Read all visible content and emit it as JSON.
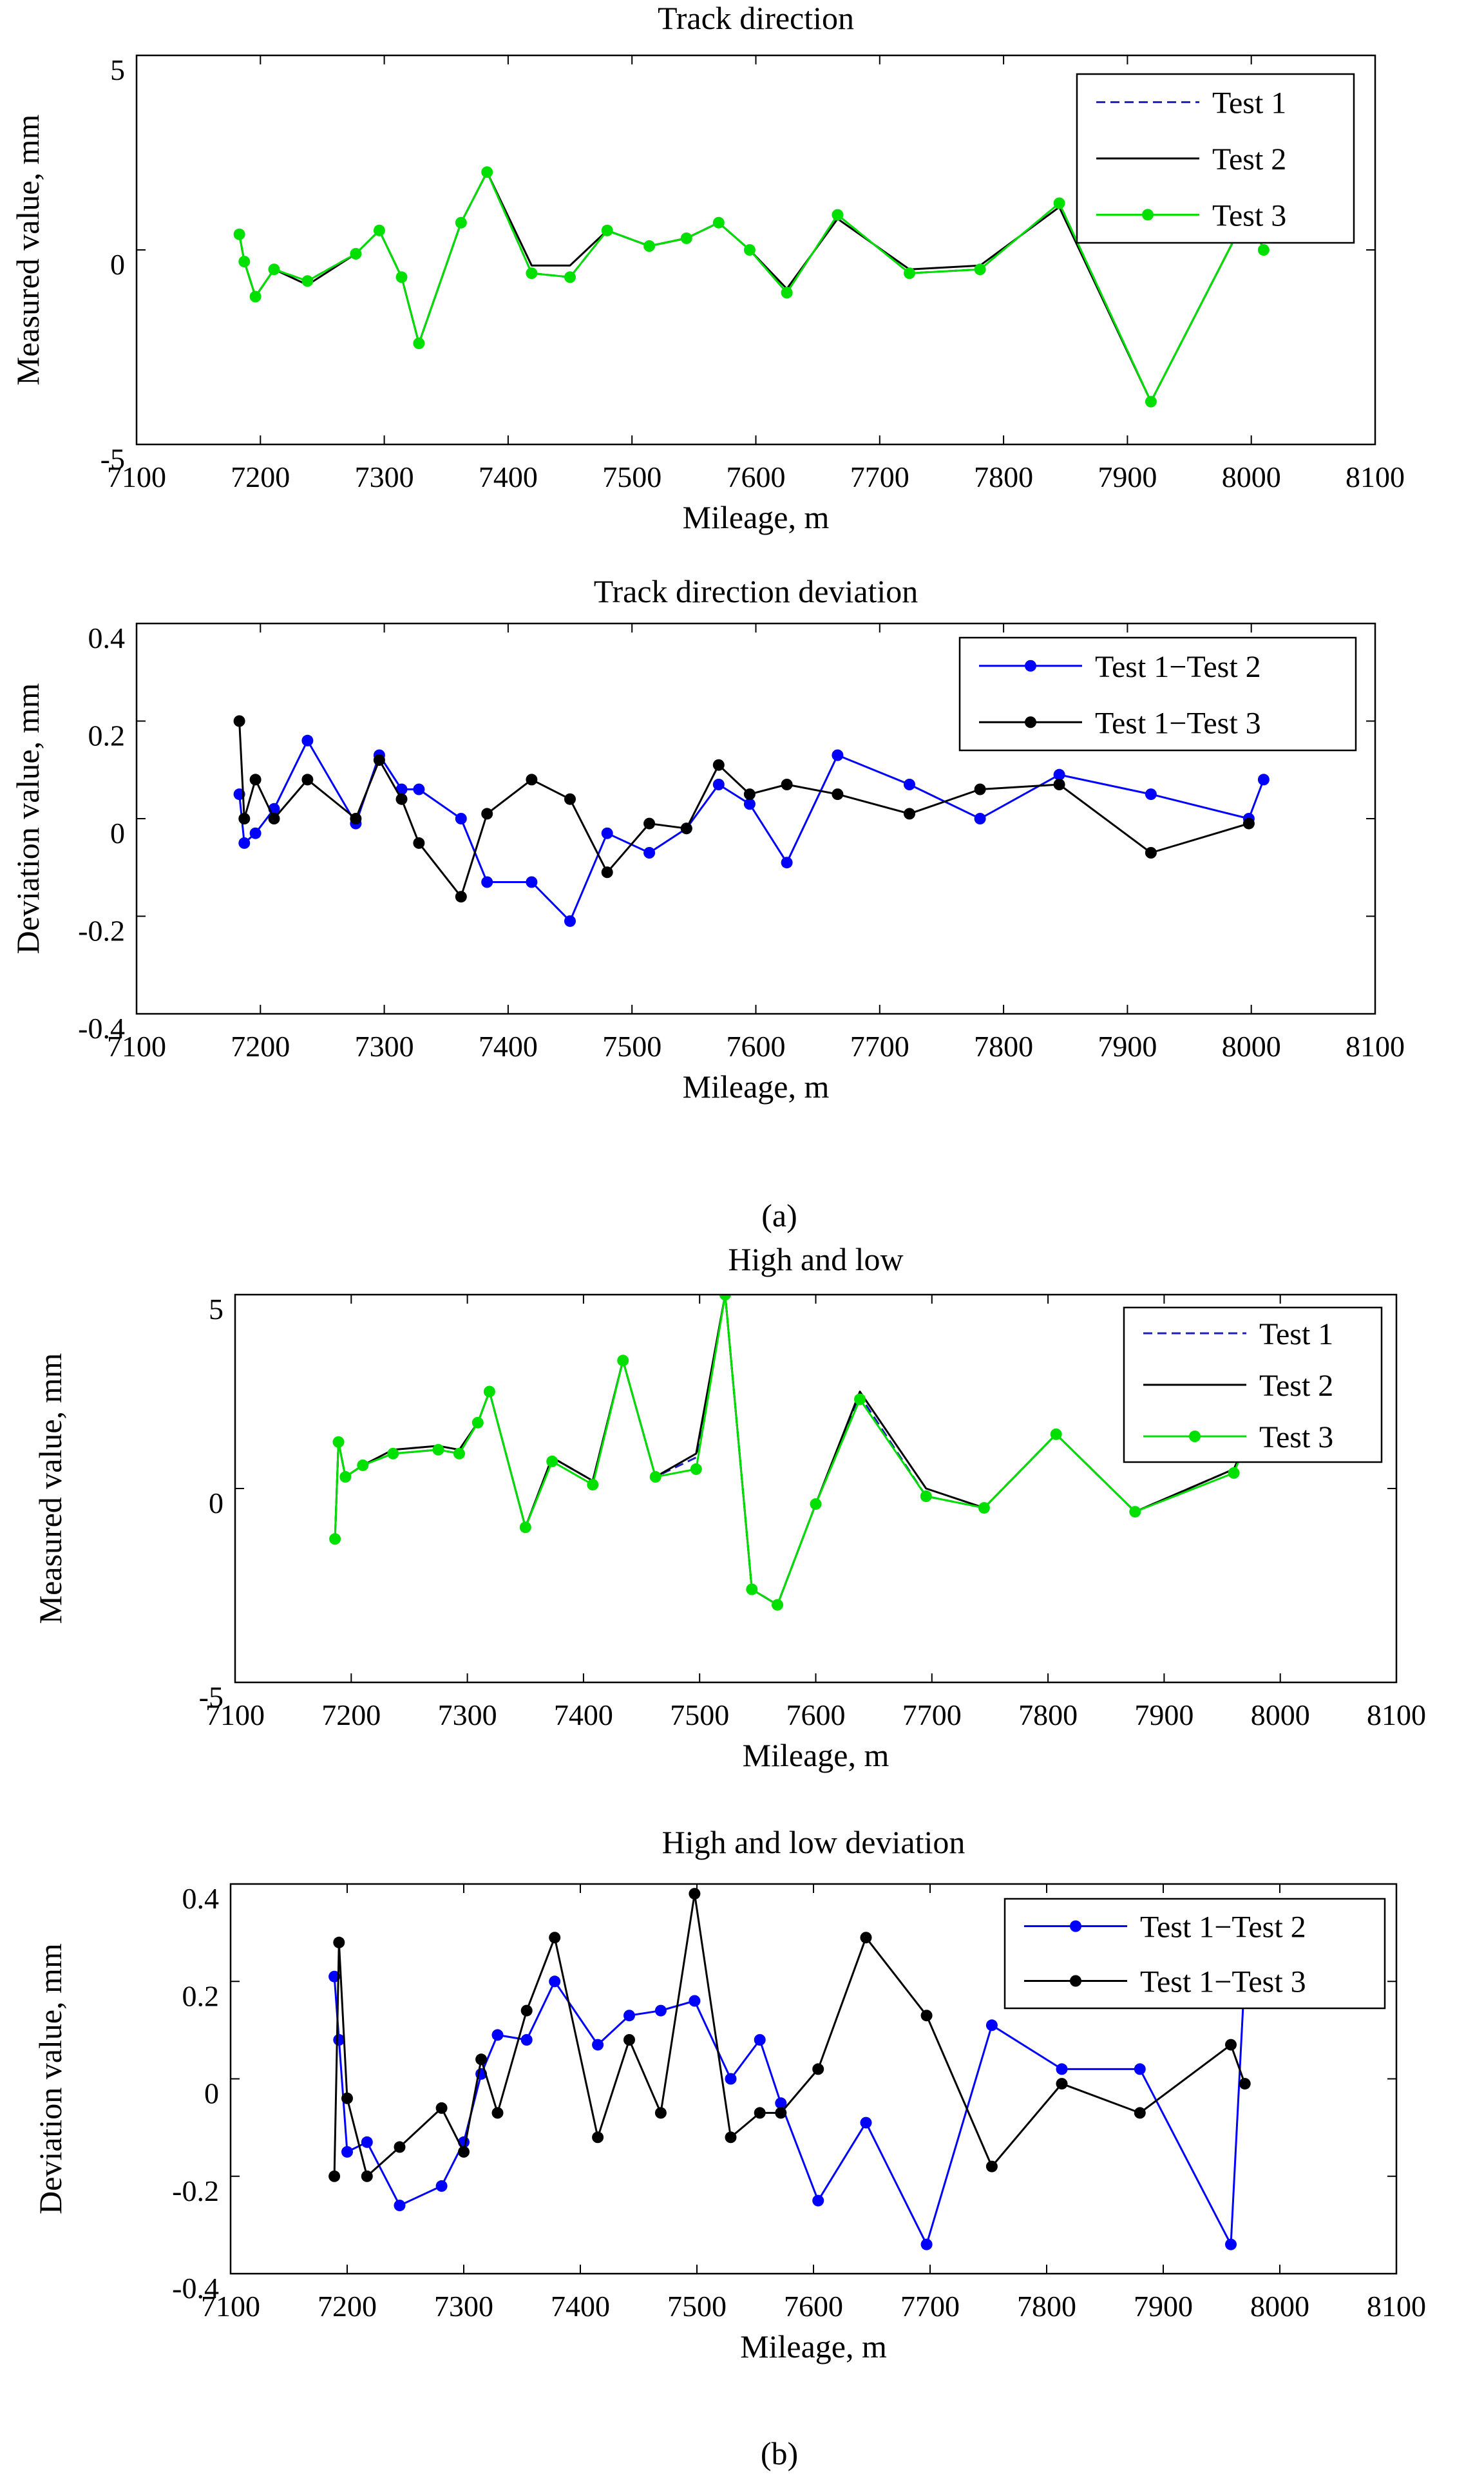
{
  "figure": {
    "captions": [
      "(a)",
      "(b)"
    ]
  },
  "colors": {
    "test1": "#1f1fbf",
    "test2": "#000000",
    "test3": "#00e000",
    "dev12": "#0000ff",
    "dev13": "#000000"
  },
  "chart_data": [
    {
      "id": "track-direction",
      "type": "line",
      "title": "Track direction",
      "xlabel": "Mileage, m",
      "ylabel": "Measured value, mm",
      "xlim": [
        7100,
        8100
      ],
      "ylim": [
        -5,
        5
      ],
      "xticks": [
        7100,
        7200,
        7300,
        7400,
        7500,
        7600,
        7700,
        7800,
        7900,
        8000,
        8100
      ],
      "yticks": [
        -5,
        0,
        5
      ],
      "legend_position": "top-right",
      "series": [
        {
          "name": "Test 1",
          "style": "dashed",
          "color": "#1f1fbf",
          "markers": false,
          "x": [
            7183,
            7187,
            7196,
            7211,
            7238,
            7277,
            7296,
            7314,
            7328,
            7362,
            7383,
            7419,
            7450,
            7480,
            7514,
            7544,
            7570,
            7595,
            7625,
            7666,
            7724,
            7781,
            7845,
            7919,
            7998,
            8010
          ],
          "y": [
            0.4,
            -0.3,
            -1.2,
            -0.5,
            -0.8,
            -0.1,
            0.5,
            -0.7,
            -2.4,
            0.7,
            2.0,
            -0.6,
            -0.7,
            0.5,
            0.1,
            0.3,
            0.7,
            0.0,
            -1.1,
            0.9,
            -0.6,
            -0.5,
            1.2,
            -3.9,
            1.0,
            0.0
          ]
        },
        {
          "name": "Test 2",
          "style": "solid",
          "color": "#000000",
          "markers": false,
          "x": [
            7183,
            7187,
            7196,
            7211,
            7238,
            7277,
            7296,
            7314,
            7328,
            7362,
            7383,
            7419,
            7450,
            7480,
            7514,
            7544,
            7570,
            7595,
            7625,
            7666,
            7724,
            7781,
            7845,
            7919,
            7998,
            8010
          ],
          "y": [
            0.4,
            -0.3,
            -1.2,
            -0.5,
            -0.9,
            -0.1,
            0.5,
            -0.7,
            -2.4,
            0.7,
            2.0,
            -0.4,
            -0.4,
            0.5,
            0.1,
            0.3,
            0.7,
            0.0,
            -1.0,
            0.8,
            -0.5,
            -0.4,
            1.1,
            -3.9,
            1.0,
            0.0
          ]
        },
        {
          "name": "Test 3",
          "style": "solid",
          "color": "#00e000",
          "markers": true,
          "x": [
            7183,
            7187,
            7196,
            7211,
            7238,
            7277,
            7296,
            7314,
            7328,
            7362,
            7383,
            7419,
            7450,
            7480,
            7514,
            7544,
            7570,
            7595,
            7625,
            7666,
            7724,
            7781,
            7845,
            7919,
            7998,
            8010
          ],
          "y": [
            0.4,
            -0.3,
            -1.2,
            -0.5,
            -0.8,
            -0.1,
            0.5,
            -0.7,
            -2.4,
            0.7,
            2.0,
            -0.6,
            -0.7,
            0.5,
            0.1,
            0.3,
            0.7,
            0.0,
            -1.1,
            0.9,
            -0.6,
            -0.5,
            1.2,
            -3.9,
            1.0,
            0.0
          ]
        }
      ]
    },
    {
      "id": "track-direction-deviation",
      "type": "line",
      "title": "Track direction deviation",
      "xlabel": "Mileage, m",
      "ylabel": "Deviation value, mm",
      "xlim": [
        7100,
        8100
      ],
      "ylim": [
        -0.4,
        0.4
      ],
      "xticks": [
        7100,
        7200,
        7300,
        7400,
        7500,
        7600,
        7700,
        7800,
        7900,
        8000,
        8100
      ],
      "yticks": [
        -0.4,
        -0.2,
        0,
        0.2,
        0.4
      ],
      "legend_position": "top-right",
      "series": [
        {
          "name": "Test 1−Test 2",
          "style": "solid",
          "color": "#0000ff",
          "markers": true,
          "x": [
            7183,
            7187,
            7196,
            7211,
            7238,
            7277,
            7296,
            7314,
            7328,
            7362,
            7383,
            7419,
            7450,
            7480,
            7514,
            7544,
            7570,
            7595,
            7625,
            7666,
            7724,
            7781,
            7845,
            7919,
            7998,
            8010
          ],
          "y": [
            0.05,
            -0.05,
            -0.03,
            0.02,
            0.16,
            -0.01,
            0.13,
            0.06,
            0.06,
            0.0,
            -0.13,
            -0.13,
            -0.21,
            -0.03,
            -0.07,
            -0.02,
            0.07,
            0.03,
            -0.09,
            0.13,
            0.07,
            0.0,
            0.09,
            0.05,
            0.0,
            0.08
          ]
        },
        {
          "name": "Test 1−Test 3",
          "style": "solid",
          "color": "#000000",
          "markers": true,
          "x": [
            7183,
            7187,
            7196,
            7211,
            7238,
            7277,
            7296,
            7314,
            7328,
            7362,
            7383,
            7419,
            7450,
            7480,
            7514,
            7544,
            7570,
            7595,
            7625,
            7666,
            7724,
            7781,
            7845,
            7919,
            7998
          ],
          "y": [
            0.2,
            0.0,
            0.08,
            0.0,
            0.08,
            0.0,
            0.12,
            0.04,
            -0.05,
            -0.16,
            0.01,
            0.08,
            0.04,
            -0.11,
            -0.01,
            -0.02,
            0.11,
            0.05,
            0.07,
            0.05,
            0.01,
            0.06,
            0.07,
            -0.07,
            -0.01
          ]
        }
      ]
    },
    {
      "id": "high-and-low",
      "type": "line",
      "title": "High and low",
      "xlabel": "Mileage, m",
      "ylabel": "Measured value, mm",
      "xlim": [
        7100,
        8100
      ],
      "ylim": [
        -5,
        5
      ],
      "xticks": [
        7100,
        7200,
        7300,
        7400,
        7500,
        7600,
        7700,
        7800,
        7900,
        8000,
        8100
      ],
      "yticks": [
        -5,
        0,
        5
      ],
      "legend_position": "top-right",
      "series": [
        {
          "name": "Test 1",
          "style": "dashed",
          "color": "#1f1fbf",
          "markers": false,
          "x": [
            7186,
            7189,
            7195,
            7210,
            7236,
            7275,
            7293,
            7309,
            7319,
            7350,
            7373,
            7408,
            7434,
            7462,
            7497,
            7522,
            7545,
            7567,
            7600,
            7638,
            7695,
            7745,
            7807,
            7875,
            7960,
            7975
          ],
          "y": [
            -1.3,
            1.2,
            0.3,
            0.6,
            0.9,
            1.0,
            0.9,
            1.7,
            2.5,
            -1.0,
            0.8,
            0.2,
            3.3,
            0.3,
            0.8,
            5.0,
            -2.6,
            -3.0,
            -0.4,
            2.4,
            -0.2,
            -0.5,
            1.4,
            -0.6,
            0.5,
            1.5
          ]
        },
        {
          "name": "Test 2",
          "style": "solid",
          "color": "#000000",
          "markers": false,
          "x": [
            7186,
            7189,
            7195,
            7210,
            7236,
            7275,
            7293,
            7309,
            7319,
            7350,
            7373,
            7408,
            7434,
            7462,
            7497,
            7522,
            7545,
            7567,
            7600,
            7638,
            7695,
            7745,
            7807,
            7875,
            7960,
            7975
          ],
          "y": [
            -1.3,
            1.2,
            0.3,
            0.6,
            1.0,
            1.1,
            1.0,
            1.7,
            2.5,
            -1.0,
            0.8,
            0.2,
            3.3,
            0.3,
            0.9,
            5.0,
            -2.6,
            -3.0,
            -0.4,
            2.5,
            0.0,
            -0.5,
            1.4,
            -0.6,
            0.5,
            1.5
          ]
        },
        {
          "name": "Test 3",
          "style": "solid",
          "color": "#00e000",
          "markers": true,
          "x": [
            7186,
            7189,
            7195,
            7210,
            7236,
            7275,
            7293,
            7309,
            7319,
            7350,
            7373,
            7408,
            7434,
            7462,
            7497,
            7522,
            7545,
            7567,
            7600,
            7638,
            7695,
            7745,
            7807,
            7875,
            7960,
            7975
          ],
          "y": [
            -1.3,
            1.2,
            0.3,
            0.6,
            0.9,
            1.0,
            0.9,
            1.7,
            2.5,
            -1.0,
            0.7,
            0.1,
            3.3,
            0.3,
            0.5,
            5.0,
            -2.6,
            -3.0,
            -0.4,
            2.3,
            -0.2,
            -0.5,
            1.4,
            -0.6,
            0.4,
            1.5
          ]
        }
      ]
    },
    {
      "id": "high-and-low-deviation",
      "type": "line",
      "title": "High and low deviation",
      "xlabel": "Mileage, m",
      "ylabel": "Deviation value, mm",
      "xlim": [
        7100,
        8100
      ],
      "ylim": [
        -0.4,
        0.4
      ],
      "xticks": [
        7100,
        7200,
        7300,
        7400,
        7500,
        7600,
        7700,
        7800,
        7900,
        8000,
        8100
      ],
      "yticks": [
        -0.4,
        -0.2,
        0,
        0.2,
        0.4
      ],
      "legend_position": "top-right",
      "series": [
        {
          "name": "Test 1−Test 2",
          "style": "solid",
          "color": "#0000ff",
          "markers": true,
          "x": [
            7189,
            7193,
            7200,
            7217,
            7245,
            7281,
            7300,
            7315,
            7329,
            7354,
            7378,
            7415,
            7442,
            7469,
            7498,
            7529,
            7554,
            7572,
            7604,
            7645,
            7697,
            7753,
            7813,
            7880,
            7958,
            7970
          ],
          "y": [
            0.21,
            0.08,
            -0.15,
            -0.13,
            -0.26,
            -0.22,
            -0.13,
            0.01,
            0.09,
            0.08,
            0.2,
            0.07,
            0.13,
            0.14,
            0.16,
            0.0,
            0.08,
            -0.05,
            -0.25,
            -0.09,
            -0.34,
            0.11,
            0.02,
            0.02,
            -0.34,
            0.22
          ]
        },
        {
          "name": "Test 1−Test 3",
          "style": "solid",
          "color": "#000000",
          "markers": true,
          "x": [
            7189,
            7193,
            7200,
            7217,
            7245,
            7281,
            7300,
            7315,
            7329,
            7354,
            7378,
            7415,
            7442,
            7469,
            7498,
            7529,
            7554,
            7572,
            7604,
            7645,
            7697,
            7753,
            7813,
            7880,
            7958,
            7970
          ],
          "y": [
            -0.2,
            0.28,
            -0.04,
            -0.2,
            -0.14,
            -0.06,
            -0.15,
            0.04,
            -0.07,
            0.14,
            0.29,
            -0.12,
            0.08,
            -0.07,
            0.38,
            -0.12,
            -0.07,
            -0.07,
            0.02,
            0.29,
            0.13,
            -0.18,
            -0.01,
            -0.07,
            0.07,
            -0.01
          ]
        }
      ]
    }
  ]
}
